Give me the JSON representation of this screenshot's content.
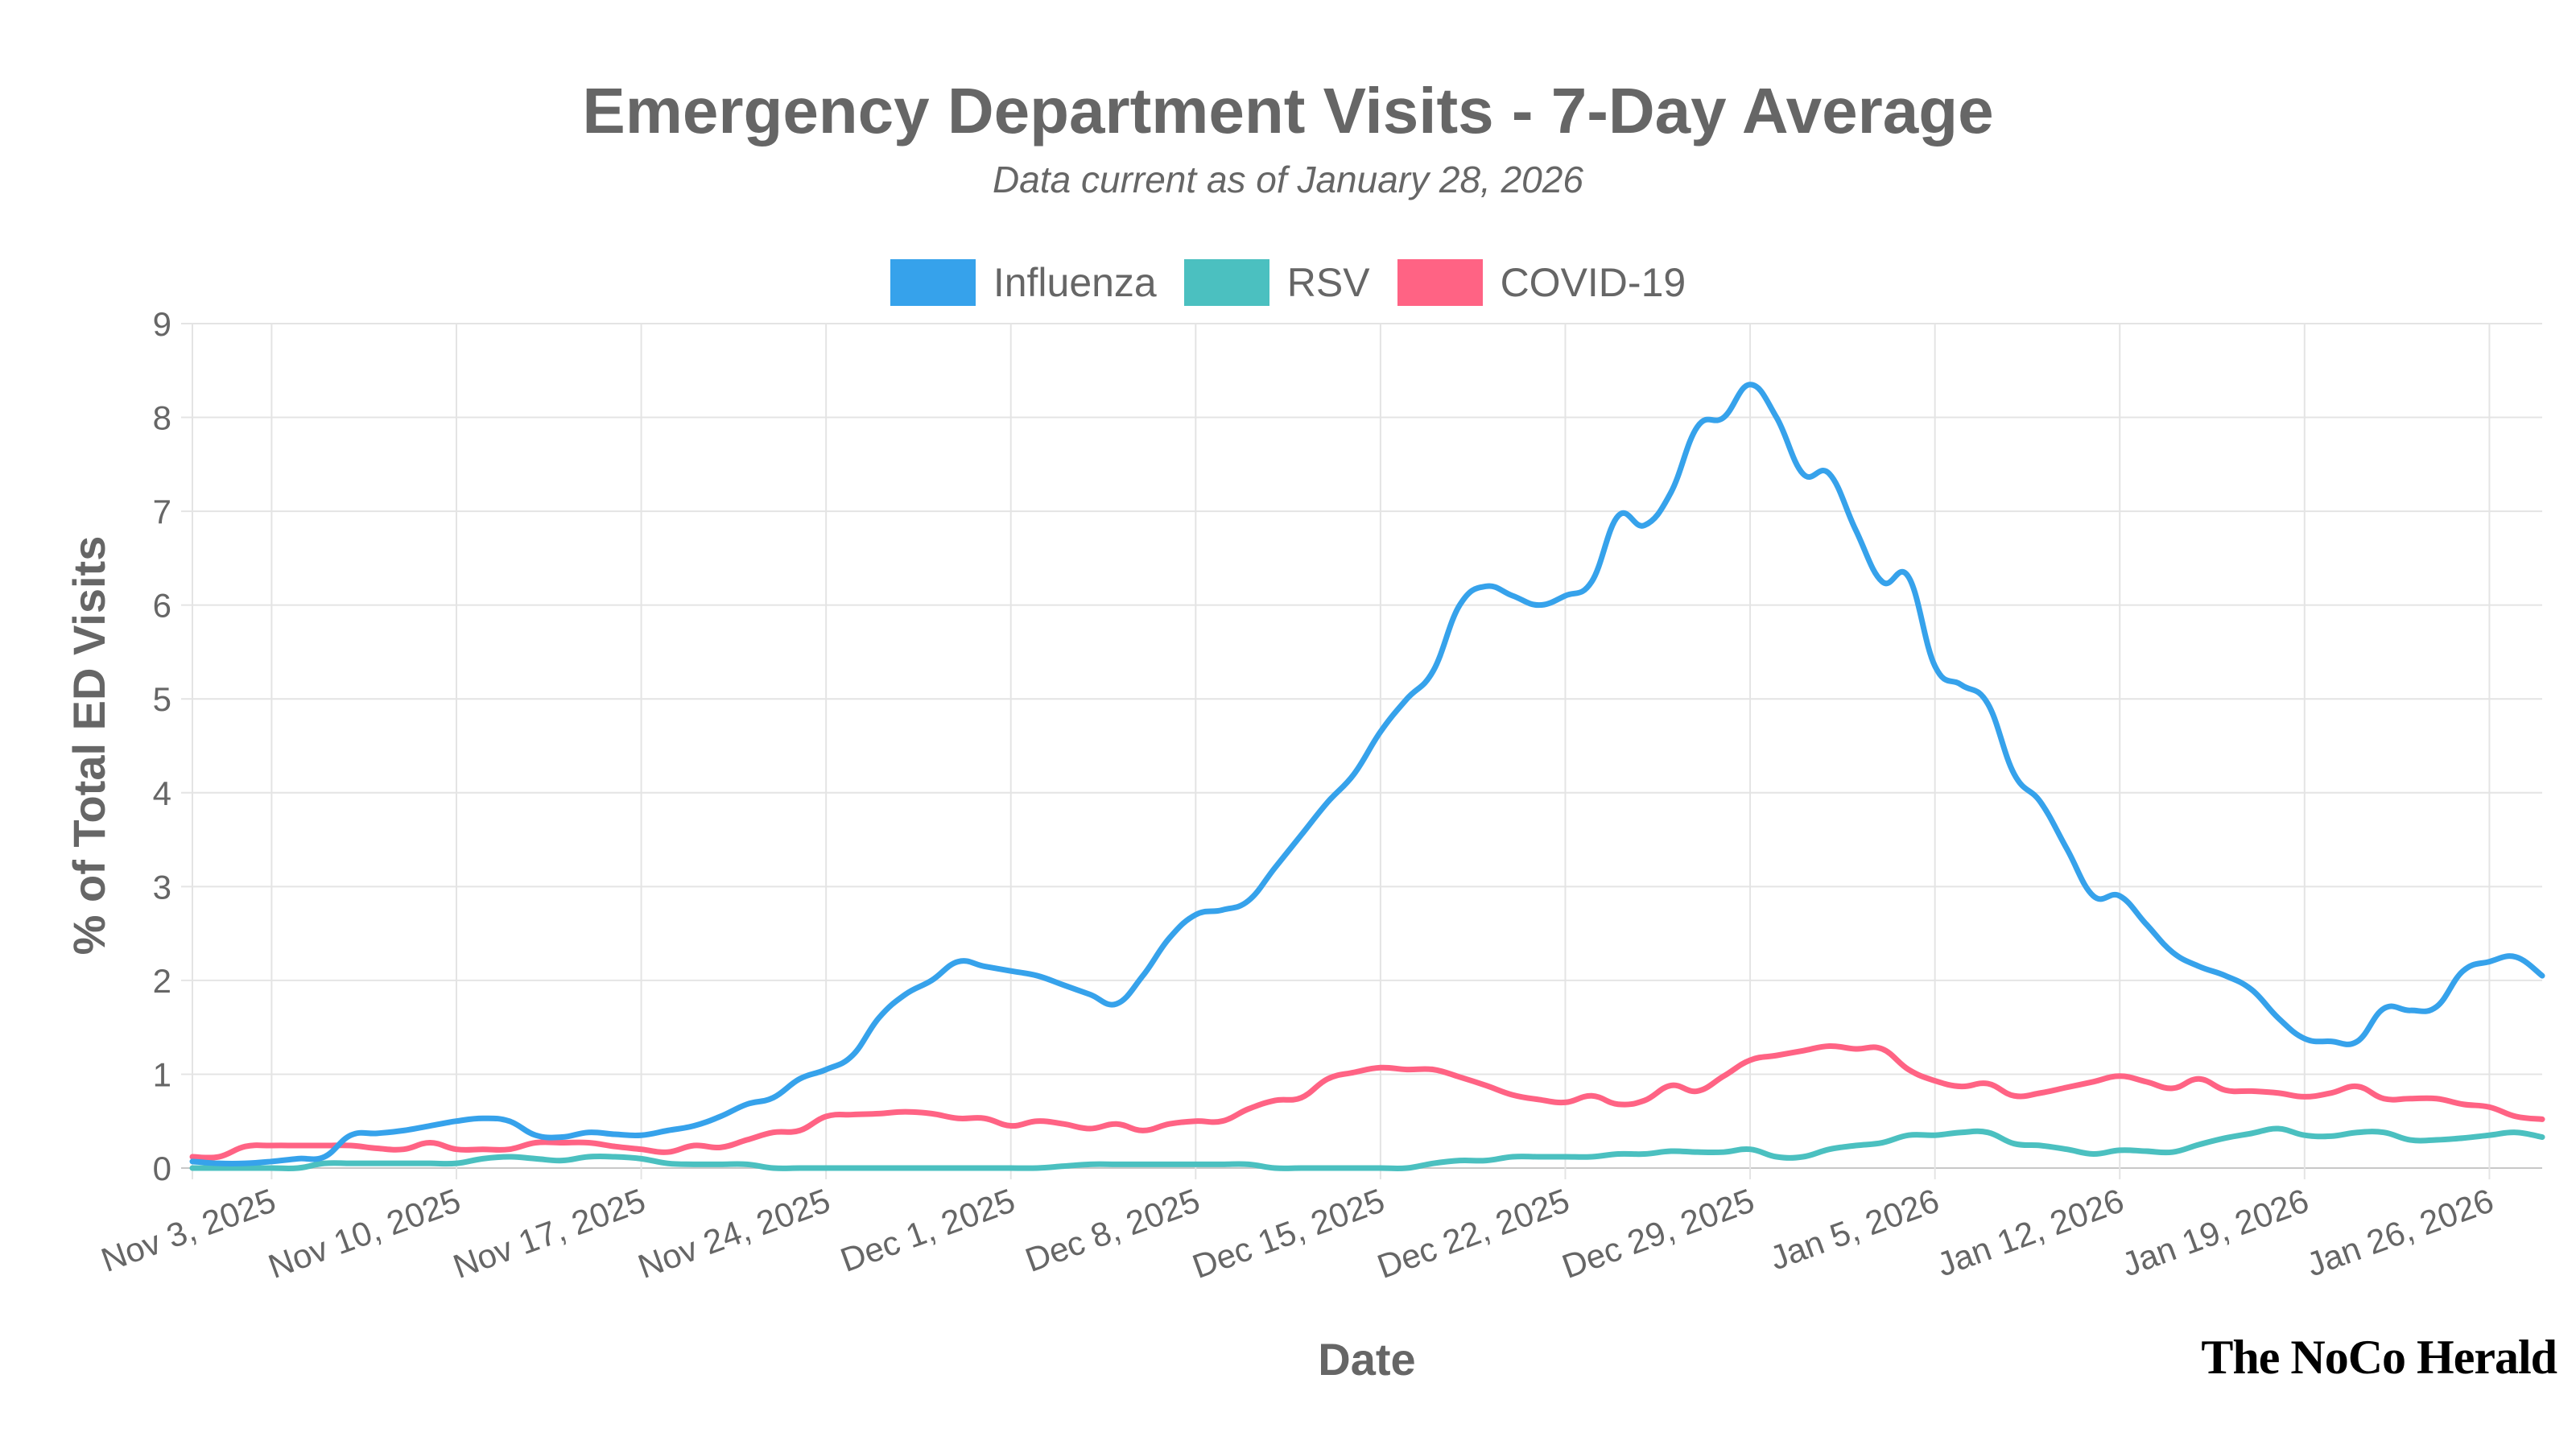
{
  "chart_data": {
    "type": "line",
    "title": "Emergency Department Visits - 7-Day Average",
    "subtitle": "Data current as of January 28, 2026",
    "xlabel": "Date",
    "ylabel": "% of Total ED Visits",
    "ylim": [
      0,
      9
    ],
    "yticks": [
      "0",
      "1",
      "2",
      "3",
      "4",
      "5",
      "6",
      "7",
      "8",
      "9"
    ],
    "xticks": [
      {
        "date": "2025-11-03",
        "label": "Nov 3, 2025"
      },
      {
        "date": "2025-11-10",
        "label": "Nov 10, 2025"
      },
      {
        "date": "2025-11-17",
        "label": "Nov 17, 2025"
      },
      {
        "date": "2025-11-24",
        "label": "Nov 24, 2025"
      },
      {
        "date": "2025-12-01",
        "label": "Dec 1, 2025"
      },
      {
        "date": "2025-12-08",
        "label": "Dec 8, 2025"
      },
      {
        "date": "2025-12-15",
        "label": "Dec 15, 2025"
      },
      {
        "date": "2025-12-22",
        "label": "Dec 22, 2025"
      },
      {
        "date": "2025-12-29",
        "label": "Dec 29, 2025"
      },
      {
        "date": "2026-01-05",
        "label": "Jan 5, 2026"
      },
      {
        "date": "2026-01-12",
        "label": "Jan 12, 2026"
      },
      {
        "date": "2026-01-19",
        "label": "Jan 19, 2026"
      },
      {
        "date": "2026-01-26",
        "label": "Jan 26, 2026"
      }
    ],
    "grid": true,
    "legend_position": "top",
    "x": [
      "2025-10-31",
      "2025-11-01",
      "2025-11-02",
      "2025-11-03",
      "2025-11-04",
      "2025-11-05",
      "2025-11-06",
      "2025-11-07",
      "2025-11-08",
      "2025-11-09",
      "2025-11-10",
      "2025-11-11",
      "2025-11-12",
      "2025-11-13",
      "2025-11-14",
      "2025-11-15",
      "2025-11-16",
      "2025-11-17",
      "2025-11-18",
      "2025-11-19",
      "2025-11-20",
      "2025-11-21",
      "2025-11-22",
      "2025-11-23",
      "2025-11-24",
      "2025-11-25",
      "2025-11-26",
      "2025-11-27",
      "2025-11-28",
      "2025-11-29",
      "2025-11-30",
      "2025-12-01",
      "2025-12-02",
      "2025-12-03",
      "2025-12-04",
      "2025-12-05",
      "2025-12-06",
      "2025-12-07",
      "2025-12-08",
      "2025-12-09",
      "2025-12-10",
      "2025-12-11",
      "2025-12-12",
      "2025-12-13",
      "2025-12-14",
      "2025-12-15",
      "2025-12-16",
      "2025-12-17",
      "2025-12-18",
      "2025-12-19",
      "2025-12-20",
      "2025-12-21",
      "2025-12-22",
      "2025-12-23",
      "2025-12-24",
      "2025-12-25",
      "2025-12-26",
      "2025-12-27",
      "2025-12-28",
      "2025-12-29",
      "2025-12-30",
      "2025-12-31",
      "2026-01-01",
      "2026-01-02",
      "2026-01-03",
      "2026-01-04",
      "2026-01-05",
      "2026-01-06",
      "2026-01-07",
      "2026-01-08",
      "2026-01-09",
      "2026-01-10",
      "2026-01-11",
      "2026-01-12",
      "2026-01-13",
      "2026-01-14",
      "2026-01-15",
      "2026-01-16",
      "2026-01-17",
      "2026-01-18",
      "2026-01-19",
      "2026-01-20",
      "2026-01-21",
      "2026-01-22",
      "2026-01-23",
      "2026-01-24",
      "2026-01-25",
      "2026-01-26",
      "2026-01-27",
      "2026-01-28"
    ],
    "series": [
      {
        "name": "Influenza",
        "color": "#36a2eb",
        "values": [
          0.07,
          0.05,
          0.05,
          0.07,
          0.1,
          0.12,
          0.35,
          0.37,
          0.4,
          0.45,
          0.5,
          0.53,
          0.5,
          0.35,
          0.33,
          0.38,
          0.36,
          0.35,
          0.4,
          0.45,
          0.55,
          0.68,
          0.75,
          0.95,
          1.05,
          1.2,
          1.6,
          1.85,
          2.0,
          2.2,
          2.15,
          2.1,
          2.05,
          1.95,
          1.85,
          1.75,
          2.05,
          2.45,
          2.7,
          2.75,
          2.85,
          3.2,
          3.55,
          3.9,
          4.2,
          4.65,
          5.0,
          5.3,
          6.0,
          6.2,
          6.1,
          6.0,
          6.1,
          6.25,
          6.95,
          6.85,
          7.2,
          7.9,
          8.0,
          8.35,
          8.0,
          7.4,
          7.4,
          6.8,
          6.25,
          6.3,
          5.35,
          5.15,
          4.95,
          4.2,
          3.9,
          3.4,
          2.9,
          2.9,
          2.6,
          2.3,
          2.15,
          2.05,
          1.9,
          1.6,
          1.38,
          1.35,
          1.35,
          1.7,
          1.68,
          1.72,
          2.1,
          2.2,
          2.25,
          2.05
        ]
      },
      {
        "name": "RSV",
        "color": "#4bc0c0",
        "values": [
          0.0,
          0.0,
          0.0,
          0.0,
          0.0,
          0.05,
          0.05,
          0.05,
          0.05,
          0.05,
          0.05,
          0.1,
          0.12,
          0.1,
          0.08,
          0.12,
          0.12,
          0.1,
          0.05,
          0.04,
          0.04,
          0.04,
          0.0,
          0.0,
          0.0,
          0.0,
          0.0,
          0.0,
          0.0,
          0.0,
          0.0,
          0.0,
          0.0,
          0.02,
          0.04,
          0.04,
          0.04,
          0.04,
          0.04,
          0.04,
          0.04,
          0.0,
          0.0,
          0.0,
          0.0,
          0.0,
          0.0,
          0.05,
          0.08,
          0.08,
          0.12,
          0.12,
          0.12,
          0.12,
          0.15,
          0.15,
          0.18,
          0.17,
          0.17,
          0.2,
          0.12,
          0.12,
          0.2,
          0.24,
          0.27,
          0.35,
          0.35,
          0.38,
          0.38,
          0.26,
          0.24,
          0.2,
          0.15,
          0.19,
          0.18,
          0.17,
          0.25,
          0.32,
          0.37,
          0.42,
          0.35,
          0.34,
          0.38,
          0.38,
          0.3,
          0.3,
          0.32,
          0.35,
          0.38,
          0.33
        ]
      },
      {
        "name": "COVID-19",
        "color": "#ff6384",
        "values": [
          0.12,
          0.12,
          0.23,
          0.24,
          0.24,
          0.24,
          0.24,
          0.21,
          0.2,
          0.27,
          0.2,
          0.2,
          0.2,
          0.27,
          0.27,
          0.27,
          0.23,
          0.2,
          0.17,
          0.24,
          0.22,
          0.3,
          0.38,
          0.4,
          0.55,
          0.57,
          0.58,
          0.6,
          0.58,
          0.53,
          0.53,
          0.45,
          0.5,
          0.47,
          0.42,
          0.47,
          0.4,
          0.47,
          0.5,
          0.5,
          0.63,
          0.72,
          0.75,
          0.95,
          1.02,
          1.07,
          1.05,
          1.05,
          0.97,
          0.88,
          0.78,
          0.73,
          0.7,
          0.77,
          0.68,
          0.72,
          0.88,
          0.82,
          0.98,
          1.15,
          1.2,
          1.25,
          1.3,
          1.27,
          1.27,
          1.05,
          0.93,
          0.87,
          0.9,
          0.77,
          0.8,
          0.86,
          0.92,
          0.98,
          0.92,
          0.85,
          0.95,
          0.83,
          0.82,
          0.8,
          0.76,
          0.8,
          0.87,
          0.74,
          0.74,
          0.74,
          0.68,
          0.65,
          0.55,
          0.52
        ]
      }
    ]
  },
  "branding": {
    "logo_text": "The NoCo Herald"
  }
}
